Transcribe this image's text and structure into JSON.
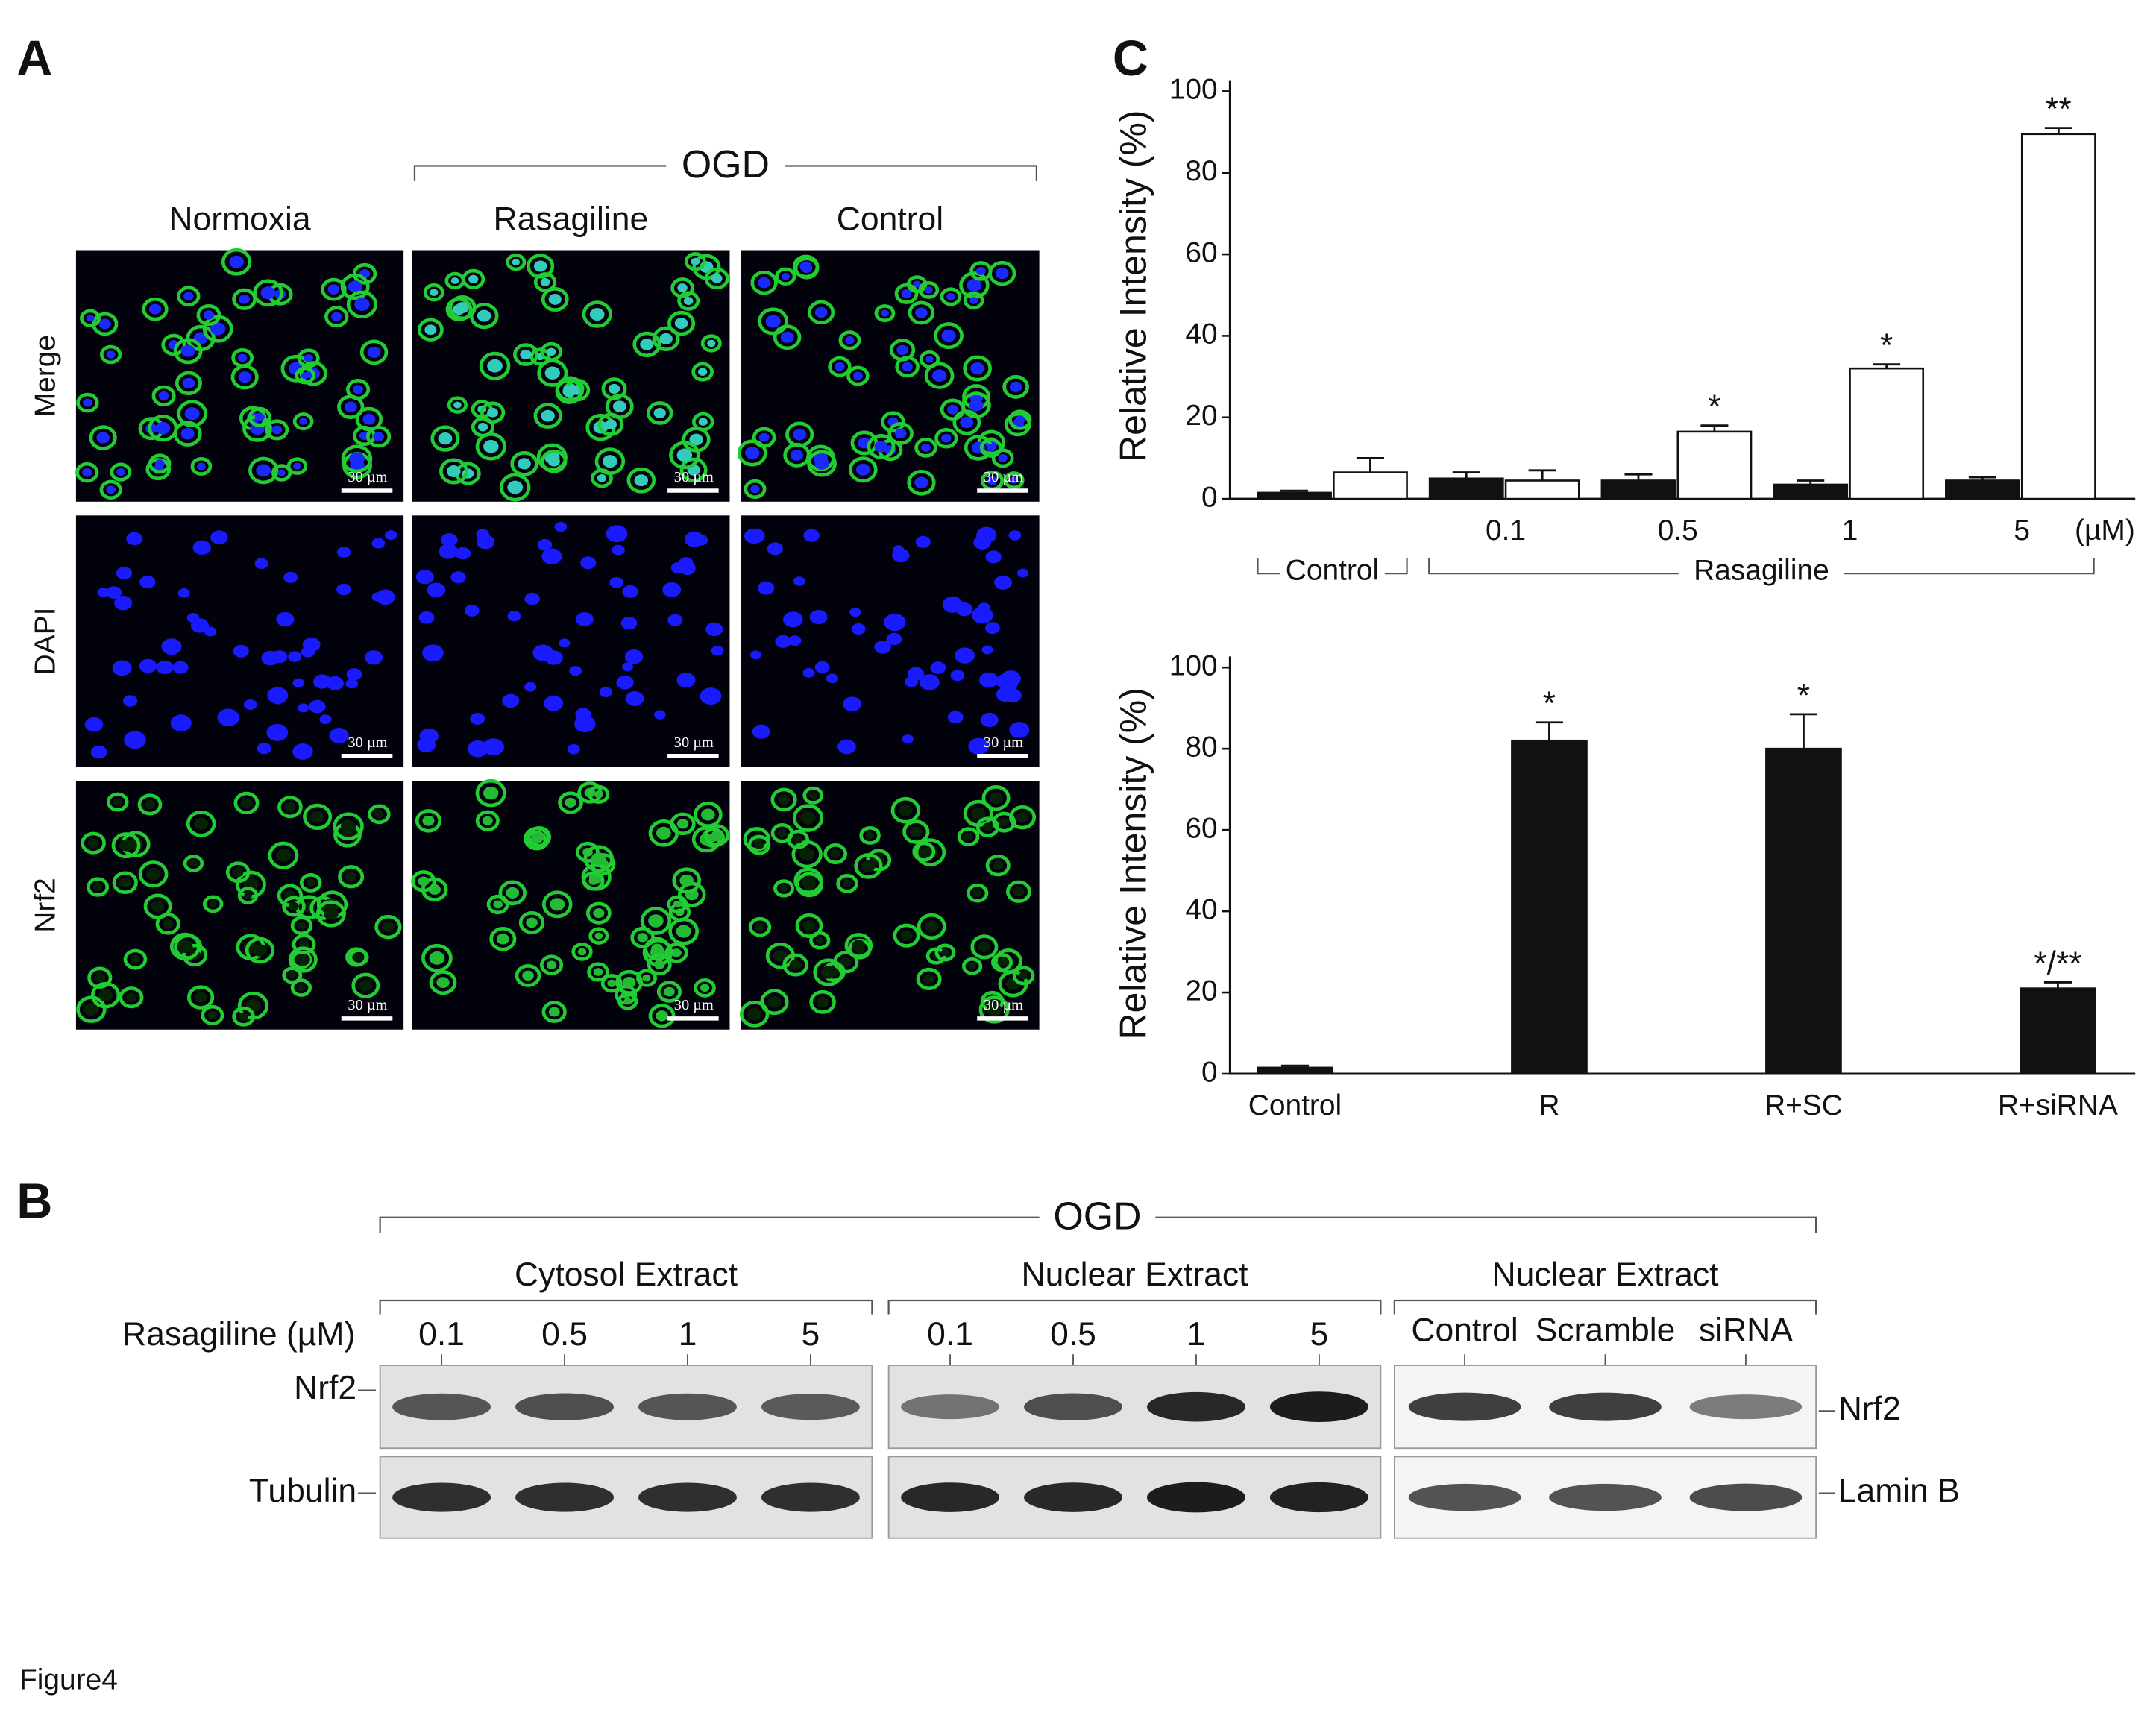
{
  "figure_label": "Figure4",
  "panel_a": {
    "label": "A",
    "group": "OGD",
    "columns": [
      "Normoxia",
      "Rasagiline",
      "Control"
    ],
    "rows": [
      "Merge",
      "DAPI",
      "Nrf2"
    ],
    "scale_bar": "30 µm"
  },
  "panel_b": {
    "label": "B",
    "group": "OGD",
    "row_label": "Rasagiline (µM)",
    "sections": [
      {
        "title": "Cytosol Extract",
        "lanes": [
          "0.1",
          "0.5",
          "1",
          "5"
        ]
      },
      {
        "title": "Nuclear  Extract",
        "lanes": [
          "0.1",
          "0.5",
          "1",
          "5"
        ]
      },
      {
        "title": "Nuclear  Extract",
        "lanes": [
          "Control",
          "Scramble",
          "siRNA"
        ]
      }
    ],
    "left_blots": [
      "Nrf2",
      "Tubulin"
    ],
    "right_blots": [
      "Nrf2",
      "Lamin B"
    ]
  },
  "panel_c_label": "C",
  "chart_data": [
    {
      "type": "bar",
      "ylabel": "Relative Intensity (%)",
      "categories": [
        null,
        "0.1",
        "0.5",
        "1",
        "5"
      ],
      "unit_label": "(µM)",
      "groups": [
        "Control",
        "Rasagiline"
      ],
      "series": [
        {
          "color": "#111111",
          "values": [
            1.5,
            5,
            4.5,
            3.5,
            4.5
          ],
          "errors": [
            0.5,
            1.5,
            1.5,
            1,
            0.8
          ],
          "annotations": [
            null,
            null,
            null,
            null,
            null
          ]
        },
        {
          "color": "#ffffff",
          "values": [
            6.5,
            4.5,
            16.5,
            32,
            89.5
          ],
          "errors": [
            3.5,
            2.5,
            1.5,
            1,
            1.5
          ],
          "annotations": [
            null,
            null,
            "*",
            "*",
            "**"
          ]
        }
      ],
      "ylim": [
        0,
        100
      ],
      "yticks": [
        0,
        20,
        40,
        60,
        80,
        100
      ]
    },
    {
      "type": "bar",
      "ylabel": "Relative Intensity (%)",
      "categories": [
        "Control",
        "R",
        "R+SC",
        "R+siRNA"
      ],
      "series": [
        {
          "color": "#111111",
          "values": [
            1.5,
            82,
            80,
            21
          ],
          "errors": [
            0.5,
            4.5,
            8.5,
            1.5
          ],
          "annotations": [
            null,
            "*",
            "*",
            "*/**"
          ]
        }
      ],
      "ylim": [
        0,
        100
      ],
      "yticks": [
        0,
        20,
        40,
        60,
        80,
        100
      ]
    }
  ]
}
